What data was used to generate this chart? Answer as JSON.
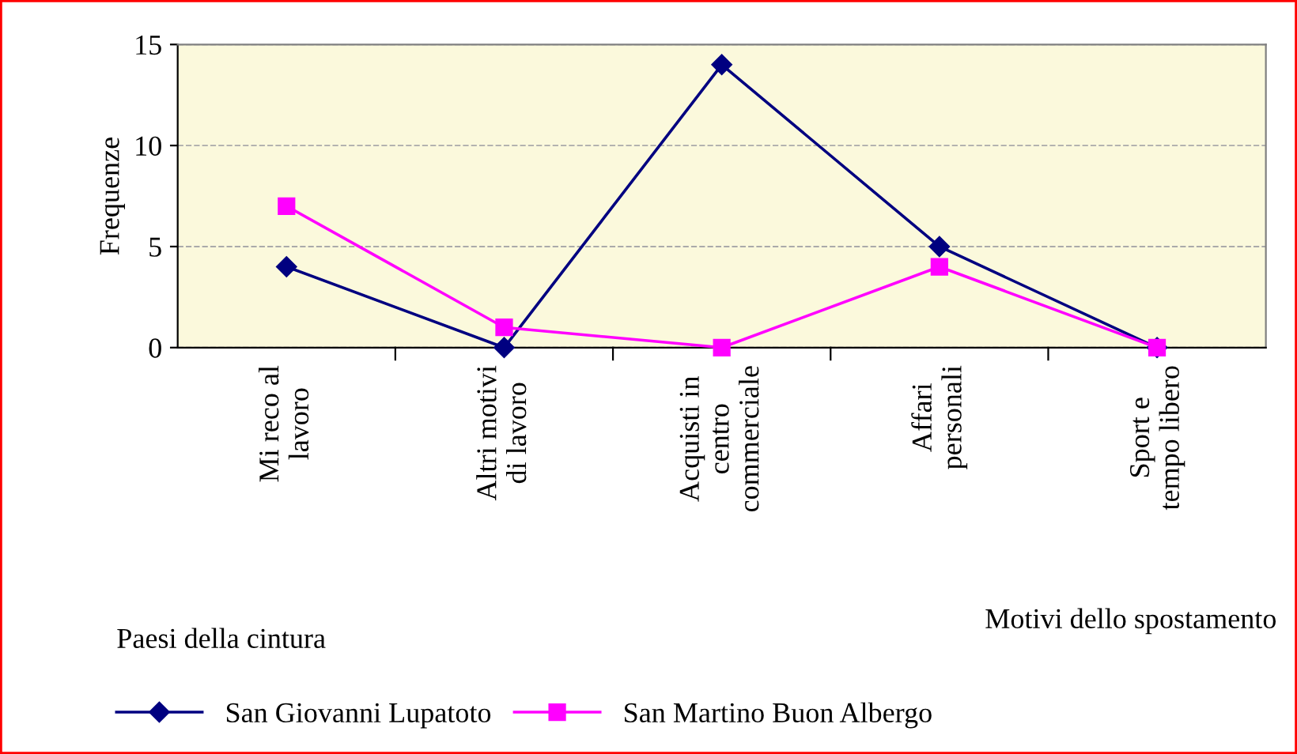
{
  "chart_data": {
    "type": "line",
    "xlabel": "Motivi dello spostamento",
    "ylabel": "Frequenze",
    "legend_title": "Paesi della cintura",
    "categories": [
      "Mi reco al\nlavoro",
      "Altri motivi\ndi lavoro",
      "Acquisti in\ncentro\ncommerciale",
      "Affari\npersonali",
      "Sport e\ntempo libero"
    ],
    "series": [
      {
        "name": "San Giovanni Lupatoto",
        "color": "#000080",
        "marker": "diamond",
        "values": [
          4,
          0,
          14,
          5,
          0
        ]
      },
      {
        "name": "San Martino Buon Albergo",
        "color": "#ff00ff",
        "marker": "square",
        "values": [
          7,
          1,
          0,
          4,
          0
        ]
      }
    ],
    "ylim": [
      0,
      15
    ],
    "yticks": [
      0,
      5,
      10,
      15
    ],
    "grid": "y",
    "legend": "bottom"
  }
}
